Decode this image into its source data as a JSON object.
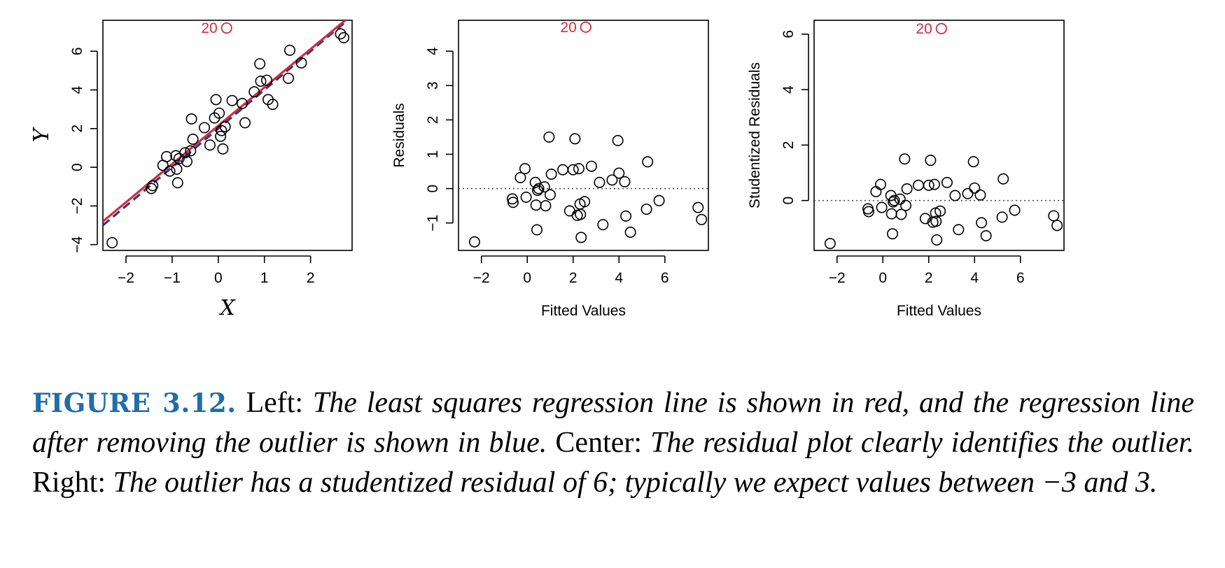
{
  "chart_data": [
    {
      "type": "scatter",
      "panel": "left",
      "xlabel": "X",
      "ylabel": "Y",
      "xlim": [
        -2.5,
        2.9
      ],
      "ylim": [
        -4.3,
        7.6
      ],
      "xticks": [
        -2,
        -1,
        0,
        1,
        2
      ],
      "yticks": [
        -4,
        -2,
        0,
        2,
        4,
        6
      ],
      "grid": false,
      "points": [
        [
          -2.3,
          -3.9
        ],
        [
          -1.45,
          -1.1
        ],
        [
          -1.42,
          -0.95
        ],
        [
          -1.2,
          0.1
        ],
        [
          -1.12,
          0.55
        ],
        [
          -1.05,
          -0.2
        ],
        [
          -0.92,
          0.6
        ],
        [
          -0.9,
          -0.1
        ],
        [
          -0.88,
          -0.8
        ],
        [
          -0.85,
          0.45
        ],
        [
          -0.72,
          0.75
        ],
        [
          -0.68,
          0.3
        ],
        [
          -0.6,
          0.85
        ],
        [
          -0.58,
          2.5
        ],
        [
          -0.55,
          1.45
        ],
        [
          -0.3,
          2.05
        ],
        [
          -0.18,
          1.15
        ],
        [
          -0.08,
          2.55
        ],
        [
          -0.05,
          3.5
        ],
        [
          0.02,
          2.8
        ],
        [
          0.05,
          1.6
        ],
        [
          0.07,
          1.9
        ],
        [
          0.1,
          0.95
        ],
        [
          0.15,
          2.1
        ],
        [
          0.3,
          3.45
        ],
        [
          0.52,
          3.3
        ],
        [
          0.58,
          2.3
        ],
        [
          0.78,
          3.9
        ],
        [
          0.9,
          5.35
        ],
        [
          0.92,
          4.45
        ],
        [
          1.05,
          4.5
        ],
        [
          1.08,
          3.5
        ],
        [
          1.18,
          3.25
        ],
        [
          1.52,
          4.6
        ],
        [
          1.55,
          6.05
        ],
        [
          1.8,
          5.4
        ],
        [
          2.65,
          6.9
        ],
        [
          2.72,
          6.7
        ]
      ],
      "outlier": {
        "label": "20",
        "x": 0.18,
        "y": 7.2
      },
      "lines": [
        {
          "color": "#d52b3b",
          "style": "solid",
          "intercept": 2.15,
          "slope": 1.98
        },
        {
          "color": "#2e3591",
          "style": "dashed",
          "intercept": 2.0,
          "slope": 2.0
        }
      ]
    },
    {
      "type": "scatter",
      "panel": "center",
      "xlabel": "Fitted Values",
      "ylabel": "Residuals",
      "xlim": [
        -3.0,
        7.9
      ],
      "ylim": [
        -1.8,
        4.9
      ],
      "xticks": [
        -2,
        0,
        2,
        4,
        6
      ],
      "yticks": [
        -1,
        0,
        1,
        2,
        3,
        4
      ],
      "grid": false,
      "hline": 0,
      "points": [
        [
          -2.3,
          -1.55
        ],
        [
          -0.65,
          -0.3
        ],
        [
          -0.62,
          -0.4
        ],
        [
          -0.3,
          0.32
        ],
        [
          -0.1,
          0.58
        ],
        [
          -0.05,
          -0.25
        ],
        [
          0.35,
          0.18
        ],
        [
          0.38,
          -0.48
        ],
        [
          0.42,
          -1.2
        ],
        [
          0.45,
          -0.05
        ],
        [
          0.5,
          0.0
        ],
        [
          0.75,
          0.05
        ],
        [
          0.8,
          -0.5
        ],
        [
          0.95,
          1.5
        ],
        [
          1.0,
          -0.18
        ],
        [
          1.05,
          0.42
        ],
        [
          1.55,
          0.55
        ],
        [
          1.85,
          -0.65
        ],
        [
          2.0,
          0.55
        ],
        [
          2.08,
          1.45
        ],
        [
          2.18,
          -0.78
        ],
        [
          2.25,
          0.58
        ],
        [
          2.3,
          -0.45
        ],
        [
          2.32,
          -0.75
        ],
        [
          2.35,
          -1.42
        ],
        [
          2.5,
          -0.38
        ],
        [
          2.8,
          0.65
        ],
        [
          3.15,
          0.18
        ],
        [
          3.3,
          -1.05
        ],
        [
          3.7,
          0.25
        ],
        [
          3.95,
          1.4
        ],
        [
          4.0,
          0.45
        ],
        [
          4.25,
          0.2
        ],
        [
          4.3,
          -0.8
        ],
        [
          4.5,
          -1.27
        ],
        [
          5.2,
          -0.6
        ],
        [
          5.25,
          0.78
        ],
        [
          5.75,
          -0.35
        ],
        [
          7.45,
          -0.55
        ],
        [
          7.6,
          -0.9
        ]
      ],
      "outlier": {
        "label": "20",
        "x": 2.55,
        "y": 4.7
      }
    },
    {
      "type": "scatter",
      "panel": "right",
      "xlabel": "Fitted Values",
      "ylabel": "Studentized Residuals",
      "xlim": [
        -3.0,
        7.9
      ],
      "ylim": [
        -1.8,
        6.5
      ],
      "xticks": [
        -2,
        0,
        2,
        4,
        6
      ],
      "yticks": [
        0,
        2,
        4,
        6
      ],
      "grid": false,
      "hline": 0,
      "points": [
        [
          -2.3,
          -1.55
        ],
        [
          -0.65,
          -0.3
        ],
        [
          -0.62,
          -0.4
        ],
        [
          -0.3,
          0.32
        ],
        [
          -0.1,
          0.58
        ],
        [
          -0.05,
          -0.25
        ],
        [
          0.35,
          0.18
        ],
        [
          0.38,
          -0.48
        ],
        [
          0.42,
          -1.2
        ],
        [
          0.45,
          -0.05
        ],
        [
          0.5,
          0.0
        ],
        [
          0.75,
          0.05
        ],
        [
          0.8,
          -0.5
        ],
        [
          0.95,
          1.5
        ],
        [
          1.0,
          -0.18
        ],
        [
          1.05,
          0.42
        ],
        [
          1.55,
          0.55
        ],
        [
          1.85,
          -0.65
        ],
        [
          2.0,
          0.55
        ],
        [
          2.08,
          1.45
        ],
        [
          2.18,
          -0.78
        ],
        [
          2.25,
          0.58
        ],
        [
          2.3,
          -0.45
        ],
        [
          2.32,
          -0.75
        ],
        [
          2.35,
          -1.42
        ],
        [
          2.5,
          -0.38
        ],
        [
          2.8,
          0.65
        ],
        [
          3.15,
          0.18
        ],
        [
          3.3,
          -1.05
        ],
        [
          3.7,
          0.25
        ],
        [
          3.95,
          1.4
        ],
        [
          4.0,
          0.45
        ],
        [
          4.25,
          0.2
        ],
        [
          4.3,
          -0.8
        ],
        [
          4.5,
          -1.27
        ],
        [
          5.2,
          -0.6
        ],
        [
          5.25,
          0.78
        ],
        [
          5.75,
          -0.35
        ],
        [
          7.45,
          -0.55
        ],
        [
          7.6,
          -0.9
        ]
      ],
      "outlier": {
        "label": "20",
        "x": 2.55,
        "y": 6.2
      }
    }
  ],
  "caption": {
    "label": "FIGURE 3.12.",
    "left_word": "Left:",
    "left_text": "The least squares regression line is shown in red, and the regression line after removing the outlier is shown in blue.",
    "center_word": "Center:",
    "center_text": "The residual plot clearly identifies the outlier.",
    "right_word": "Right:",
    "right_text": "The outlier has a studentized residual of 6; typically we expect values between −3 and 3."
  },
  "colors": {
    "outlier": "#d52b3b",
    "least_squares_line": "#d52b3b",
    "outlier_removed_line": "#2e3591",
    "caption_label": "#1f6ea8",
    "points": "#000000"
  }
}
